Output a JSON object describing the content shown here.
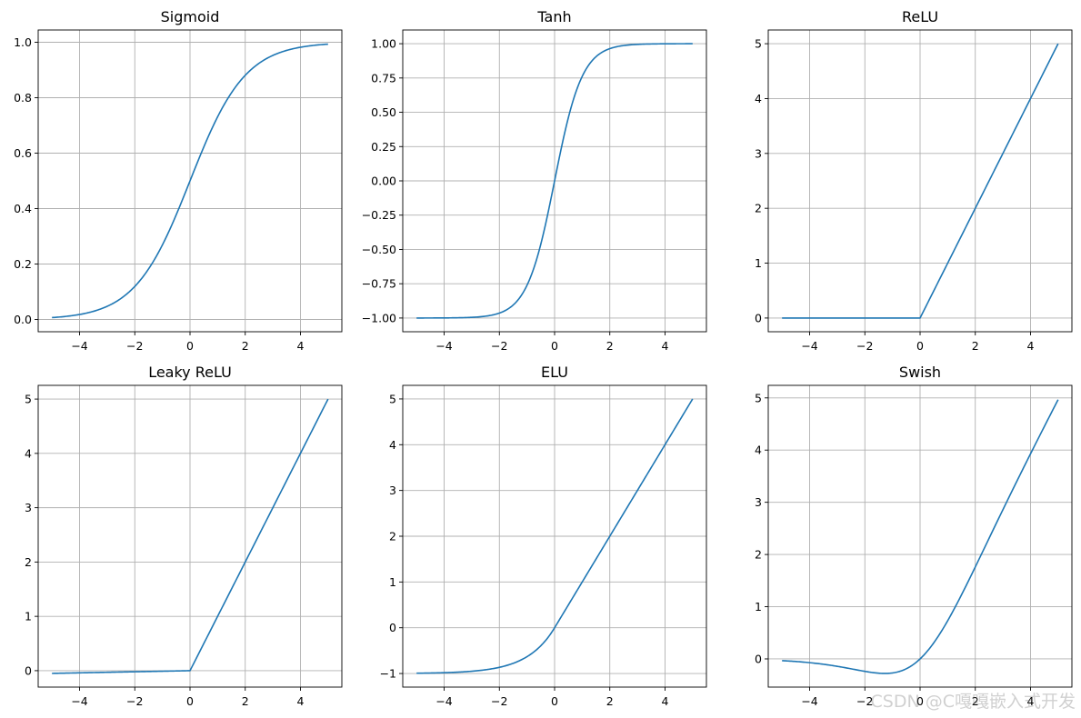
{
  "figure": {
    "background": "#ffffff"
  },
  "style": {
    "line_color": "#1f77b4",
    "grid_color": "#b0b0b0",
    "axis_color": "#000000"
  },
  "watermark": "CSDN @C嘎嘎嵌入式开发",
  "chart_data": [
    {
      "type": "line",
      "title": "Sigmoid",
      "function": "sigmoid",
      "xlim": [
        -5.5,
        5.5
      ],
      "ylim": [
        -0.0443,
        1.0443
      ],
      "xticks": [
        -4,
        -2,
        0,
        2,
        4
      ],
      "xtick_labels": [
        "−4",
        "−2",
        "0",
        "2",
        "4"
      ],
      "yticks": [
        0.0,
        0.2,
        0.4,
        0.6,
        0.8,
        1.0
      ],
      "ytick_labels": [
        "0.0",
        "0.2",
        "0.4",
        "0.6",
        "0.8",
        "1.0"
      ],
      "grid": true,
      "x": [
        -5,
        -4,
        -3,
        -2,
        -1,
        0,
        1,
        2,
        3,
        4,
        5
      ],
      "y": [
        0.0067,
        0.018,
        0.0474,
        0.1192,
        0.2689,
        0.5,
        0.7311,
        0.8808,
        0.9526,
        0.982,
        0.9933
      ]
    },
    {
      "type": "line",
      "title": "Tanh",
      "function": "tanh",
      "xlim": [
        -5.5,
        5.5
      ],
      "ylim": [
        -1.1,
        1.1
      ],
      "xticks": [
        -4,
        -2,
        0,
        2,
        4
      ],
      "xtick_labels": [
        "−4",
        "−2",
        "0",
        "2",
        "4"
      ],
      "yticks": [
        -1.0,
        -0.75,
        -0.5,
        -0.25,
        0.0,
        0.25,
        0.5,
        0.75,
        1.0
      ],
      "ytick_labels": [
        "−1.00",
        "−0.75",
        "−0.50",
        "−0.25",
        "0.00",
        "0.25",
        "0.50",
        "0.75",
        "1.00"
      ],
      "grid": true,
      "x": [
        -5,
        -4,
        -3,
        -2,
        -1,
        0,
        1,
        2,
        3,
        4,
        5
      ],
      "y": [
        -0.9999,
        -0.9993,
        -0.9951,
        -0.964,
        -0.7616,
        0.0,
        0.7616,
        0.964,
        0.9951,
        0.9993,
        0.9999
      ]
    },
    {
      "type": "line",
      "title": "ReLU",
      "function": "relu",
      "xlim": [
        -5.5,
        5.5
      ],
      "ylim": [
        -0.25,
        5.25
      ],
      "xticks": [
        -4,
        -2,
        0,
        2,
        4
      ],
      "xtick_labels": [
        "−4",
        "−2",
        "0",
        "2",
        "4"
      ],
      "yticks": [
        0,
        1,
        2,
        3,
        4,
        5
      ],
      "ytick_labels": [
        "0",
        "1",
        "2",
        "3",
        "4",
        "5"
      ],
      "grid": true,
      "x": [
        -5,
        -4,
        -3,
        -2,
        -1,
        0,
        1,
        2,
        3,
        4,
        5
      ],
      "y": [
        0,
        0,
        0,
        0,
        0,
        0,
        1,
        2,
        3,
        4,
        5
      ]
    },
    {
      "type": "line",
      "title": "Leaky ReLU",
      "function": "leaky_relu",
      "xlim": [
        -5.5,
        5.5
      ],
      "ylim": [
        -0.3025,
        5.2525
      ],
      "xticks": [
        -4,
        -2,
        0,
        2,
        4
      ],
      "xtick_labels": [
        "−4",
        "−2",
        "0",
        "2",
        "4"
      ],
      "yticks": [
        0,
        1,
        2,
        3,
        4,
        5
      ],
      "ytick_labels": [
        "0",
        "1",
        "2",
        "3",
        "4",
        "5"
      ],
      "grid": true,
      "x": [
        -5,
        -4,
        -3,
        -2,
        -1,
        0,
        1,
        2,
        3,
        4,
        5
      ],
      "y": [
        -0.05,
        -0.04,
        -0.03,
        -0.02,
        -0.01,
        0,
        1,
        2,
        3,
        4,
        5
      ]
    },
    {
      "type": "line",
      "title": "ELU",
      "function": "elu",
      "xlim": [
        -5.5,
        5.5
      ],
      "ylim": [
        -1.2966,
        5.2966
      ],
      "xticks": [
        -4,
        -2,
        0,
        2,
        4
      ],
      "xtick_labels": [
        "−4",
        "−2",
        "0",
        "2",
        "4"
      ],
      "yticks": [
        -1,
        0,
        1,
        2,
        3,
        4,
        5
      ],
      "ytick_labels": [
        "−1",
        "0",
        "1",
        "2",
        "3",
        "4",
        "5"
      ],
      "grid": true,
      "x": [
        -5,
        -4,
        -3,
        -2,
        -1,
        0,
        1,
        2,
        3,
        4,
        5
      ],
      "y": [
        -0.9933,
        -0.9817,
        -0.9502,
        -0.8647,
        -0.6321,
        0,
        1,
        2,
        3,
        4,
        5
      ]
    },
    {
      "type": "line",
      "title": "Swish",
      "function": "swish",
      "xlim": [
        -5.5,
        5.5
      ],
      "ylim": [
        -0.54,
        5.24
      ],
      "xticks": [
        -4,
        -2,
        0,
        2,
        4
      ],
      "xtick_labels": [
        "−4",
        "−2",
        "0",
        "2",
        "4"
      ],
      "yticks": [
        0,
        1,
        2,
        3,
        4,
        5
      ],
      "ytick_labels": [
        "0",
        "1",
        "2",
        "3",
        "4",
        "5"
      ],
      "grid": true,
      "x": [
        -5,
        -4,
        -3,
        -2,
        -1,
        0,
        1,
        2,
        3,
        4,
        5
      ],
      "y": [
        -0.0335,
        -0.0719,
        -0.1423,
        -0.2384,
        -0.2689,
        0,
        0.7311,
        1.7616,
        2.8577,
        3.9281,
        4.9665
      ]
    }
  ]
}
